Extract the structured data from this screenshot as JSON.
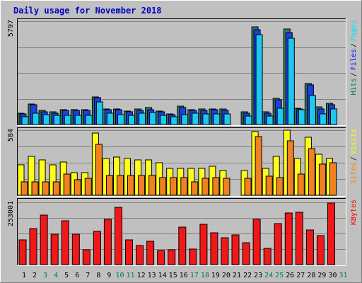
{
  "chart_data": {
    "type": "bar",
    "title": "Daily usage for November 2018",
    "days": [
      "1",
      "2",
      "3",
      "4",
      "5",
      "6",
      "7",
      "8",
      "9",
      "10",
      "11",
      "12",
      "13",
      "14",
      "15",
      "16",
      "17",
      "18",
      "19",
      "20",
      "21",
      "22",
      "23",
      "24",
      "25",
      "26",
      "27",
      "28",
      "29",
      "30",
      "31"
    ],
    "weekend_days": [
      "3",
      "4",
      "10",
      "11",
      "17",
      "18",
      "24",
      "25",
      "31"
    ],
    "panels": [
      {
        "ymax_label": "5797",
        "ymax": 5797,
        "legend": [
          {
            "text": "Pages",
            "color": "#00e0ff"
          },
          {
            "text": "Files",
            "color": "#0000ff"
          },
          {
            "text": "Hits",
            "color": "#008040"
          }
        ],
        "series": [
          {
            "name": "Hits",
            "color": "#2e7d5b",
            "values": [
              620,
              1160,
              790,
              700,
              830,
              830,
              830,
              1550,
              880,
              880,
              760,
              860,
              950,
              760,
              600,
              1030,
              850,
              860,
              860,
              860,
              0,
              700,
              5460,
              700,
              1480,
              5360,
              920,
              2290,
              1010,
              1180,
              0
            ]
          },
          {
            "name": "Files",
            "color": "#1b40e6",
            "values": [
              590,
              1110,
              730,
              650,
              780,
              780,
              780,
              1500,
              840,
              830,
              710,
              810,
              840,
              710,
              560,
              950,
              790,
              800,
              830,
              800,
              0,
              650,
              5330,
              640,
              1390,
              5150,
              880,
              2240,
              860,
              1130,
              0
            ]
          },
          {
            "name": "Pages",
            "color": "#1ec8f0",
            "values": [
              420,
              640,
              550,
              500,
              510,
              500,
              500,
              1290,
              650,
              560,
              510,
              620,
              660,
              520,
              440,
              570,
              620,
              610,
              600,
              600,
              0,
              470,
              5050,
              460,
              900,
              4840,
              830,
              1610,
              600,
              890,
              0
            ]
          }
        ]
      },
      {
        "ymax_label": "584",
        "ymax": 584,
        "legend": [
          {
            "text": "Visits",
            "color": "#ffff00"
          },
          {
            "text": "Sites",
            "color": "#ff8000"
          }
        ],
        "series": [
          {
            "name": "Visits",
            "color": "#ffff1a",
            "values": [
              270,
              350,
              320,
              270,
              300,
              200,
              200,
              560,
              330,
              340,
              330,
              320,
              320,
              290,
              240,
              240,
              240,
              240,
              260,
              220,
              0,
              220,
              570,
              240,
              350,
              584,
              330,
              520,
              370,
              330,
              0
            ]
          },
          {
            "name": "Sites",
            "color": "#f08020",
            "values": [
              120,
              120,
              120,
              120,
              190,
              140,
              150,
              460,
              180,
              180,
              180,
              180,
              180,
              160,
              160,
              160,
              120,
              150,
              160,
              150,
              0,
              150,
              530,
              170,
              160,
              490,
              190,
              420,
              280,
              290,
              0
            ]
          }
        ]
      },
      {
        "ymax_label": "253001",
        "ymax": 253001,
        "legend": [
          {
            "text": "KBytes",
            "color": "#ff0000"
          }
        ],
        "series": [
          {
            "name": "KBytes",
            "color": "#f01818",
            "values": [
              100000,
              146000,
              202000,
              124000,
              177000,
              125000,
              60000,
              134000,
              185000,
              232000,
              100000,
              79000,
              96000,
              58000,
              61000,
              153000,
              62000,
              163000,
              128000,
              108000,
              121000,
              90000,
              185000,
              65000,
              166000,
              209000,
              212000,
              142000,
              118000,
              249000,
              0
            ]
          }
        ]
      }
    ]
  }
}
